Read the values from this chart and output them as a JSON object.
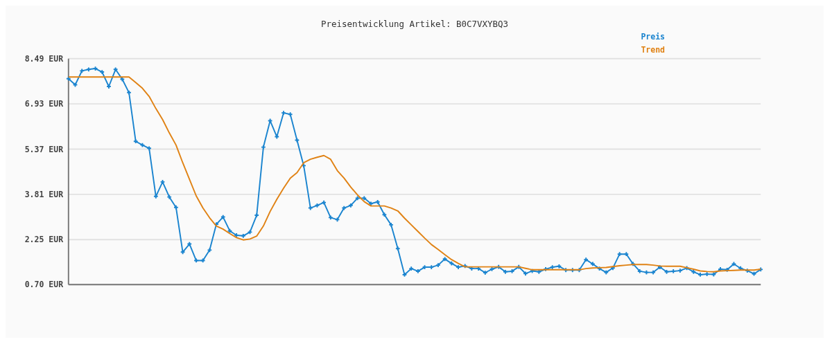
{
  "chart_data": {
    "type": "line",
    "title": "Preisentwicklung Artikel: B0C7VXYBQ3",
    "categories": [
      null,
      null,
      null,
      null,
      null,
      null,
      null,
      null,
      null,
      null,
      null,
      null,
      null,
      null,
      null,
      null,
      null,
      null,
      null,
      null,
      null,
      null,
      null,
      null,
      null,
      null,
      null,
      null,
      null,
      null,
      null,
      null,
      null,
      null,
      null,
      null,
      null,
      null,
      null,
      null,
      null,
      null,
      null,
      null,
      null,
      null,
      null,
      null,
      null,
      null,
      null,
      null,
      null,
      null,
      null,
      null,
      null,
      null,
      null,
      null,
      null,
      null,
      null,
      null,
      null,
      null,
      null,
      null,
      null,
      null,
      null,
      null,
      null,
      null,
      null,
      null,
      null,
      null,
      null,
      null,
      null,
      null,
      null,
      null,
      null,
      null,
      null,
      null,
      null,
      null,
      null,
      null,
      null,
      null,
      null,
      null,
      null,
      null,
      null,
      null,
      null,
      null,
      null,
      null
    ],
    "series": [
      {
        "name": "Preis",
        "color": "#1a84cf",
        "marker": "cross",
        "values": [
          7.8,
          7.59,
          8.07,
          8.12,
          8.15,
          8.03,
          7.53,
          8.12,
          7.78,
          7.32,
          5.64,
          5.51,
          5.4,
          3.74,
          4.24,
          3.72,
          3.36,
          1.82,
          2.1,
          1.53,
          1.53,
          1.89,
          2.78,
          3.03,
          2.55,
          2.4,
          2.38,
          2.51,
          3.09,
          5.44,
          6.35,
          5.8,
          6.62,
          6.57,
          5.68,
          4.8,
          3.34,
          3.43,
          3.53,
          3.01,
          2.94,
          3.34,
          3.43,
          3.68,
          3.68,
          3.49,
          3.55,
          3.11,
          2.76,
          1.94,
          1.04,
          1.25,
          1.16,
          1.3,
          1.3,
          1.37,
          1.58,
          1.43,
          1.3,
          1.34,
          1.25,
          1.25,
          1.11,
          1.23,
          1.31,
          1.14,
          1.16,
          1.31,
          1.08,
          1.17,
          1.14,
          1.23,
          1.3,
          1.33,
          1.2,
          1.2,
          1.2,
          1.56,
          1.41,
          1.25,
          1.12,
          1.27,
          1.75,
          1.75,
          1.41,
          1.16,
          1.12,
          1.12,
          1.3,
          1.14,
          1.16,
          1.18,
          1.27,
          1.14,
          1.04,
          1.06,
          1.05,
          1.23,
          1.21,
          1.41,
          1.26,
          1.18,
          1.07,
          1.22
        ]
      },
      {
        "name": "Trend",
        "color": "#e08214",
        "marker": "none",
        "values": [
          7.86,
          7.86,
          7.86,
          7.86,
          7.86,
          7.86,
          7.86,
          7.86,
          7.86,
          7.86,
          7.67,
          7.47,
          7.19,
          6.77,
          6.39,
          5.93,
          5.51,
          4.9,
          4.33,
          3.76,
          3.34,
          3.0,
          2.72,
          2.61,
          2.46,
          2.32,
          2.24,
          2.27,
          2.37,
          2.72,
          3.22,
          3.64,
          4.02,
          4.37,
          4.56,
          4.9,
          5.02,
          5.09,
          5.15,
          5.02,
          4.63,
          4.37,
          4.06,
          3.79,
          3.56,
          3.41,
          3.41,
          3.41,
          3.34,
          3.24,
          2.99,
          2.76,
          2.53,
          2.3,
          2.08,
          1.91,
          1.73,
          1.56,
          1.43,
          1.31,
          1.31,
          1.31,
          1.31,
          1.31,
          1.31,
          1.31,
          1.31,
          1.31,
          1.26,
          1.21,
          1.21,
          1.21,
          1.21,
          1.21,
          1.21,
          1.21,
          1.21,
          1.25,
          1.27,
          1.28,
          1.29,
          1.32,
          1.35,
          1.37,
          1.39,
          1.39,
          1.39,
          1.37,
          1.34,
          1.33,
          1.33,
          1.33,
          1.28,
          1.23,
          1.17,
          1.15,
          1.14,
          1.17,
          1.18,
          1.19,
          1.2,
          1.2,
          1.2,
          1.23
        ]
      }
    ],
    "ylim": [
      0.7,
      8.49
    ],
    "yticks": [
      {
        "value": 0.7,
        "label": "0.70 EUR"
      },
      {
        "value": 2.25,
        "label": "2.25 EUR"
      },
      {
        "value": 3.81,
        "label": "3.81 EUR"
      },
      {
        "value": 5.37,
        "label": "5.37 EUR"
      },
      {
        "value": 6.93,
        "label": "6.93 EUR"
      },
      {
        "value": 8.49,
        "label": "8.49 EUR"
      }
    ],
    "tick_labels": "y",
    "grid": "y",
    "legend": "top right"
  }
}
